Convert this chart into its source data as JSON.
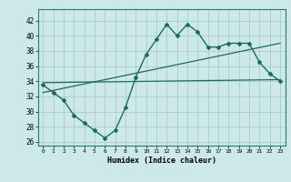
{
  "xlabel": "Humidex (Indice chaleur)",
  "background_color": "#cde8e8",
  "grid_color": "#a8cccc",
  "line_color": "#1e6b5e",
  "xlim": [
    -0.5,
    23.5
  ],
  "ylim": [
    25.5,
    43.5
  ],
  "xticks": [
    0,
    1,
    2,
    3,
    4,
    5,
    6,
    7,
    8,
    9,
    10,
    11,
    12,
    13,
    14,
    15,
    16,
    17,
    18,
    19,
    20,
    21,
    22,
    23
  ],
  "yticks": [
    26,
    28,
    30,
    32,
    34,
    36,
    38,
    40,
    42
  ],
  "main_x": [
    0,
    1,
    2,
    3,
    4,
    5,
    6,
    7,
    8,
    9,
    10,
    11,
    12,
    13,
    14,
    15,
    16,
    17,
    18,
    19,
    20,
    21,
    22,
    23
  ],
  "main_y": [
    33.5,
    32.5,
    31.5,
    29.5,
    28.5,
    27.5,
    26.5,
    27.5,
    30.5,
    34.5,
    37.5,
    39.5,
    41.5,
    40.0,
    41.5,
    40.5,
    38.5,
    38.5,
    39.0,
    39.0,
    39.0,
    36.5,
    35.0,
    34.0
  ],
  "trend1_x": [
    0,
    23
  ],
  "trend1_y": [
    32.5,
    39.0
  ],
  "trend2_x": [
    0,
    23
  ],
  "trend2_y": [
    33.8,
    34.2
  ]
}
